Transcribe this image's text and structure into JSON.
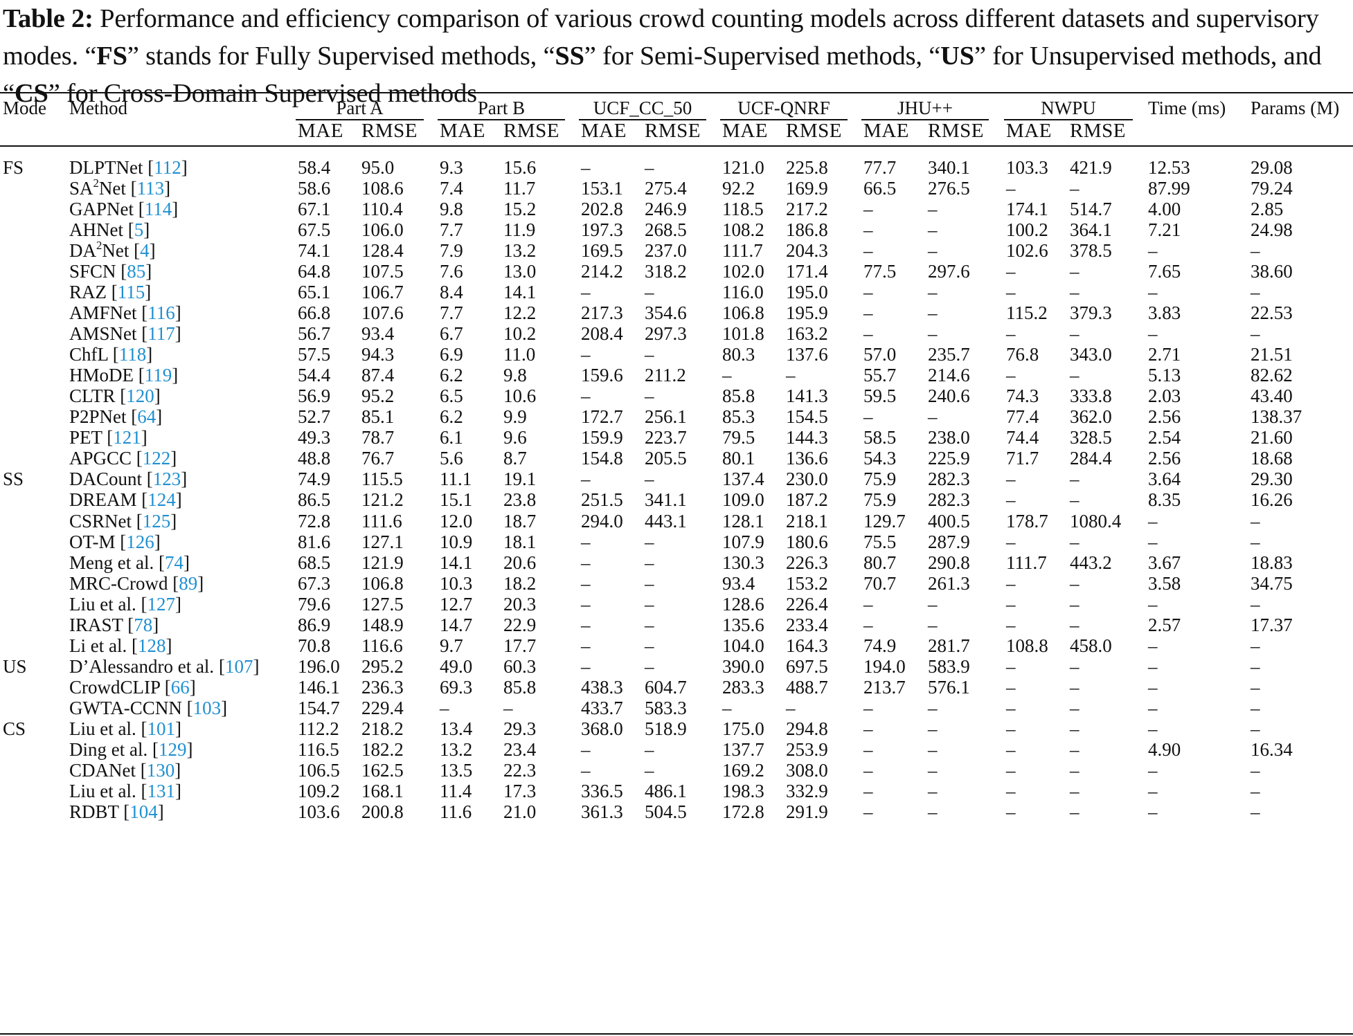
{
  "caption": {
    "label": "Table 2:",
    "parts": [
      {
        "t": " Performance and efficiency comparison of various crowd counting models across different datasets and supervisory modes. “",
        "b": false
      },
      {
        "t": "FS",
        "b": true
      },
      {
        "t": "” stands for Fully Supervised methods, “",
        "b": false
      },
      {
        "t": "SS",
        "b": true
      },
      {
        "t": "” for Semi-Supervised methods, “",
        "b": false
      },
      {
        "t": "US",
        "b": true
      },
      {
        "t": "” for Unsupervised methods, and “",
        "b": false
      },
      {
        "t": "CS",
        "b": true
      },
      {
        "t": "” for Cross-Domain Supervised methods",
        "b": false
      }
    ]
  },
  "headers": {
    "mode": "Mode",
    "method": "Method",
    "groups": [
      "Part A",
      "Part B",
      "UCF_CC_50",
      "UCF-QNRF",
      "JHU++",
      "NWPU"
    ],
    "sub": [
      "MAE",
      "RMSE"
    ],
    "time": "Time (ms)",
    "params": "Params (M)"
  },
  "rows": [
    {
      "mode": "FS",
      "name": "DLPTNet",
      "sup": "",
      "name2": "",
      "ref": "112",
      "vals": [
        "58.4",
        "95.0",
        "9.3",
        "15.6",
        "–",
        "–",
        "121.0",
        "225.8",
        "77.7",
        "340.1",
        "103.3",
        "421.9",
        "12.53",
        "29.08"
      ]
    },
    {
      "mode": "",
      "name": "SA",
      "sup": "2",
      "name2": "Net",
      "ref": "113",
      "vals": [
        "58.6",
        "108.6",
        "7.4",
        "11.7",
        "153.1",
        "275.4",
        "92.2",
        "169.9",
        "66.5",
        "276.5",
        "–",
        "–",
        "87.99",
        "79.24"
      ]
    },
    {
      "mode": "",
      "name": "GAPNet",
      "sup": "",
      "name2": "",
      "ref": "114",
      "vals": [
        "67.1",
        "110.4",
        "9.8",
        "15.2",
        "202.8",
        "246.9",
        "118.5",
        "217.2",
        "–",
        "–",
        "174.1",
        "514.7",
        "4.00",
        "2.85"
      ]
    },
    {
      "mode": "",
      "name": "AHNet",
      "sup": "",
      "name2": "",
      "ref": "5",
      "vals": [
        "67.5",
        "106.0",
        "7.7",
        "11.9",
        "197.3",
        "268.5",
        "108.2",
        "186.8",
        "–",
        "–",
        "100.2",
        "364.1",
        "7.21",
        "24.98"
      ]
    },
    {
      "mode": "",
      "name": "DA",
      "sup": "2",
      "name2": "Net",
      "ref": "4",
      "vals": [
        "74.1",
        "128.4",
        "7.9",
        "13.2",
        "169.5",
        "237.0",
        "111.7",
        "204.3",
        "–",
        "–",
        "102.6",
        "378.5",
        "–",
        "–"
      ]
    },
    {
      "mode": "",
      "name": "SFCN",
      "sup": "",
      "name2": "",
      "ref": "85",
      "vals": [
        "64.8",
        "107.5",
        "7.6",
        "13.0",
        "214.2",
        "318.2",
        "102.0",
        "171.4",
        "77.5",
        "297.6",
        "–",
        "–",
        "7.65",
        "38.60"
      ]
    },
    {
      "mode": "",
      "name": "RAZ",
      "sup": "",
      "name2": "",
      "ref": "115",
      "vals": [
        "65.1",
        "106.7",
        "8.4",
        "14.1",
        "–",
        "–",
        "116.0",
        "195.0",
        "–",
        "–",
        "–",
        "–",
        "–",
        "–"
      ]
    },
    {
      "mode": "",
      "name": "AMFNet",
      "sup": "",
      "name2": "",
      "ref": "116",
      "vals": [
        "66.8",
        "107.6",
        "7.7",
        "12.2",
        "217.3",
        "354.6",
        "106.8",
        "195.9",
        "–",
        "–",
        "115.2",
        "379.3",
        "3.83",
        "22.53"
      ]
    },
    {
      "mode": "",
      "name": "AMSNet",
      "sup": "",
      "name2": "",
      "ref": "117",
      "vals": [
        "56.7",
        "93.4",
        "6.7",
        "10.2",
        "208.4",
        "297.3",
        "101.8",
        "163.2",
        "–",
        "–",
        "–",
        "–",
        "–",
        "–"
      ]
    },
    {
      "mode": "",
      "name": "ChfL",
      "sup": "",
      "name2": "",
      "ref": "118",
      "vals": [
        "57.5",
        "94.3",
        "6.9",
        "11.0",
        "–",
        "–",
        "80.3",
        "137.6",
        "57.0",
        "235.7",
        "76.8",
        "343.0",
        "2.71",
        "21.51"
      ]
    },
    {
      "mode": "",
      "name": "HMoDE",
      "sup": "",
      "name2": "",
      "ref": "119",
      "vals": [
        "54.4",
        "87.4",
        "6.2",
        "9.8",
        "159.6",
        "211.2",
        "–",
        "–",
        "55.7",
        "214.6",
        "–",
        "–",
        "5.13",
        "82.62"
      ]
    },
    {
      "mode": "",
      "name": "CLTR",
      "sup": "",
      "name2": "",
      "ref": "120",
      "vals": [
        "56.9",
        "95.2",
        "6.5",
        "10.6",
        "–",
        "–",
        "85.8",
        "141.3",
        "59.5",
        "240.6",
        "74.3",
        "333.8",
        "2.03",
        "43.40"
      ]
    },
    {
      "mode": "",
      "name": "P2PNet",
      "sup": "",
      "name2": "",
      "ref": "64",
      "vals": [
        "52.7",
        "85.1",
        "6.2",
        "9.9",
        "172.7",
        "256.1",
        "85.3",
        "154.5",
        "–",
        "–",
        "77.4",
        "362.0",
        "2.56",
        "138.37"
      ]
    },
    {
      "mode": "",
      "name": "PET",
      "sup": "",
      "name2": "",
      "ref": "121",
      "vals": [
        "49.3",
        "78.7",
        "6.1",
        "9.6",
        "159.9",
        "223.7",
        "79.5",
        "144.3",
        "58.5",
        "238.0",
        "74.4",
        "328.5",
        "2.54",
        "21.60"
      ]
    },
    {
      "mode": "",
      "name": "APGCC",
      "sup": "",
      "name2": "",
      "ref": "122",
      "vals": [
        "48.8",
        "76.7",
        "5.6",
        "8.7",
        "154.8",
        "205.5",
        "80.1",
        "136.6",
        "54.3",
        "225.9",
        "71.7",
        "284.4",
        "2.56",
        "18.68"
      ]
    },
    {
      "mode": "SS",
      "name": "DACount",
      "sup": "",
      "name2": "",
      "ref": "123",
      "vals": [
        "74.9",
        "115.5",
        "11.1",
        "19.1",
        "–",
        "–",
        "137.4",
        "230.0",
        "75.9",
        "282.3",
        "–",
        "–",
        "3.64",
        "29.30"
      ]
    },
    {
      "mode": "",
      "name": "DREAM",
      "sup": "",
      "name2": "",
      "ref": "124",
      "vals": [
        "86.5",
        "121.2",
        "15.1",
        "23.8",
        "251.5",
        "341.1",
        "109.0",
        "187.2",
        "75.9",
        "282.3",
        "–",
        "–",
        "8.35",
        "16.26"
      ]
    },
    {
      "mode": "",
      "name": "CSRNet",
      "sup": "",
      "name2": "",
      "ref": "125",
      "vals": [
        "72.8",
        "111.6",
        "12.0",
        "18.7",
        "294.0",
        "443.1",
        "128.1",
        "218.1",
        "129.7",
        "400.5",
        "178.7",
        "1080.4",
        "–",
        "–"
      ]
    },
    {
      "mode": "",
      "name": "OT-M",
      "sup": "",
      "name2": "",
      "ref": "126",
      "vals": [
        "81.6",
        "127.1",
        "10.9",
        "18.1",
        "–",
        "–",
        "107.9",
        "180.6",
        "75.5",
        "287.9",
        "–",
        "–",
        "–",
        "–"
      ]
    },
    {
      "mode": "",
      "name": "Meng et al.",
      "sup": "",
      "name2": "",
      "ref": "74",
      "vals": [
        "68.5",
        "121.9",
        "14.1",
        "20.6",
        "–",
        "–",
        "130.3",
        "226.3",
        "80.7",
        "290.8",
        "111.7",
        "443.2",
        "3.67",
        "18.83"
      ]
    },
    {
      "mode": "",
      "name": "MRC-Crowd",
      "sup": "",
      "name2": "",
      "ref": "89",
      "vals": [
        "67.3",
        "106.8",
        "10.3",
        "18.2",
        "–",
        "–",
        "93.4",
        "153.2",
        "70.7",
        "261.3",
        "–",
        "–",
        "3.58",
        "34.75"
      ]
    },
    {
      "mode": "",
      "name": "Liu et al.",
      "sup": "",
      "name2": "",
      "ref": "127",
      "vals": [
        "79.6",
        "127.5",
        "12.7",
        "20.3",
        "–",
        "–",
        "128.6",
        "226.4",
        "–",
        "–",
        "–",
        "–",
        "–",
        "–"
      ]
    },
    {
      "mode": "",
      "name": "IRAST",
      "sup": "",
      "name2": "",
      "ref": "78",
      "vals": [
        "86.9",
        "148.9",
        "14.7",
        "22.9",
        "–",
        "–",
        "135.6",
        "233.4",
        "–",
        "–",
        "–",
        "–",
        "2.57",
        "17.37"
      ]
    },
    {
      "mode": "",
      "name": "Li et al.",
      "sup": "",
      "name2": "",
      "ref": "128",
      "vals": [
        "70.8",
        "116.6",
        "9.7",
        "17.7",
        "–",
        "–",
        "104.0",
        "164.3",
        "74.9",
        "281.7",
        "108.8",
        "458.0",
        "–",
        "–"
      ]
    },
    {
      "mode": "US",
      "name": "D’Alessandro et al.",
      "sup": "",
      "name2": "",
      "ref": "107",
      "vals": [
        "196.0",
        "295.2",
        "49.0",
        "60.3",
        "–",
        "–",
        "390.0",
        "697.5",
        "194.0",
        "583.9",
        "–",
        "–",
        "–",
        "–"
      ]
    },
    {
      "mode": "",
      "name": "CrowdCLIP",
      "sup": "",
      "name2": "",
      "ref": "66",
      "vals": [
        "146.1",
        "236.3",
        "69.3",
        "85.8",
        "438.3",
        "604.7",
        "283.3",
        "488.7",
        "213.7",
        "576.1",
        "–",
        "–",
        "–",
        "–"
      ]
    },
    {
      "mode": "",
      "name": "GWTA-CCNN",
      "sup": "",
      "name2": "",
      "ref": "103",
      "vals": [
        "154.7",
        "229.4",
        "–",
        "–",
        "433.7",
        "583.3",
        "–",
        "–",
        "–",
        "–",
        "–",
        "–",
        "–",
        "–"
      ]
    },
    {
      "mode": "CS",
      "name": "Liu et al.",
      "sup": "",
      "name2": "",
      "ref": "101",
      "vals": [
        "112.2",
        "218.2",
        "13.4",
        "29.3",
        "368.0",
        "518.9",
        "175.0",
        "294.8",
        "–",
        "–",
        "–",
        "–",
        "–",
        "–"
      ]
    },
    {
      "mode": "",
      "name": "Ding et al.",
      "sup": "",
      "name2": "",
      "ref": "129",
      "vals": [
        "116.5",
        "182.2",
        "13.2",
        "23.4",
        "–",
        "–",
        "137.7",
        "253.9",
        "–",
        "–",
        "–",
        "–",
        "4.90",
        "16.34"
      ]
    },
    {
      "mode": "",
      "name": "CDANet",
      "sup": "",
      "name2": "",
      "ref": "130",
      "vals": [
        "106.5",
        "162.5",
        "13.5",
        "22.3",
        "–",
        "–",
        "169.2",
        "308.0",
        "–",
        "–",
        "–",
        "–",
        "–",
        "–"
      ]
    },
    {
      "mode": "",
      "name": "Liu et al.",
      "sup": "",
      "name2": "",
      "ref": "131",
      "vals": [
        "109.2",
        "168.1",
        "11.4",
        "17.3",
        "336.5",
        "486.1",
        "198.3",
        "332.9",
        "–",
        "–",
        "–",
        "–",
        "–",
        "–"
      ]
    },
    {
      "mode": "",
      "name": "RDBT",
      "sup": "",
      "name2": "",
      "ref": "104",
      "vals": [
        "103.6",
        "200.8",
        "11.6",
        "21.0",
        "361.3",
        "504.5",
        "172.8",
        "291.9",
        "–",
        "–",
        "–",
        "–",
        "–",
        "–"
      ]
    }
  ]
}
